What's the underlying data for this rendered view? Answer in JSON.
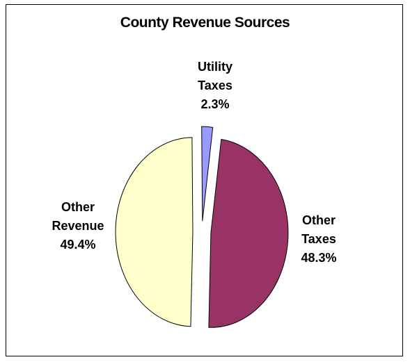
{
  "chart_data": {
    "type": "pie",
    "title": "County Revenue Sources",
    "slices": [
      {
        "label_lines": [
          "Utility",
          "Taxes"
        ],
        "value": 2.3,
        "value_label": "2.3%",
        "color": "#9999ff"
      },
      {
        "label_lines": [
          "Other",
          "Taxes"
        ],
        "value": 48.3,
        "value_label": "48.3%",
        "color": "#993366"
      },
      {
        "label_lines": [
          "Other",
          "Revenue"
        ],
        "value": 49.4,
        "value_label": "49.4%",
        "color": "#ffffcc"
      }
    ],
    "exploded": true,
    "legend": "none"
  }
}
